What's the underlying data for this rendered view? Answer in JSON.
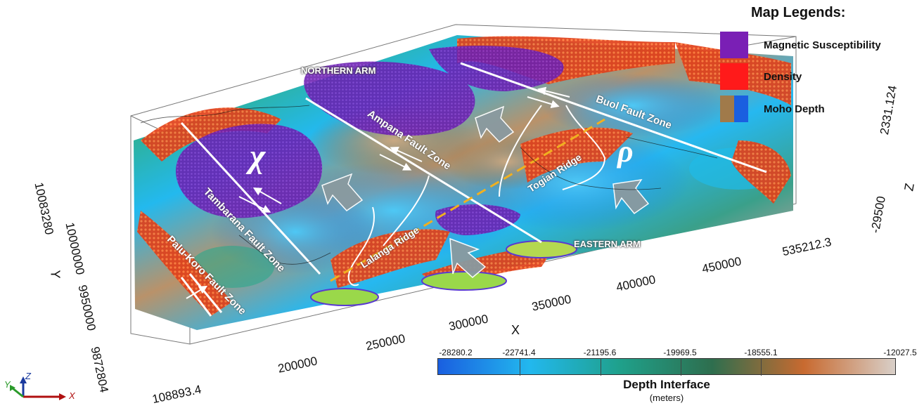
{
  "legend": {
    "title": "Map Legends:",
    "items": [
      {
        "label": "Magnetic Susceptibility",
        "color": "#7a1fb5"
      },
      {
        "label": "Density",
        "color": "#ff1a1a"
      },
      {
        "label": "Moho Depth",
        "colors": [
          "#a07a4a",
          "#1a5fe0"
        ]
      }
    ]
  },
  "map_labels": {
    "northern_arm": "NORTHERN ARM",
    "eastern_arm": "EASTERN ARM",
    "chi": "χ",
    "rho": "ρ",
    "ampana": "Ampana Fault Zone",
    "buol": "Buol Fault Zone",
    "togian": "Togian Ridge",
    "lalanga": "Lalanga Ridge",
    "tambarana": "Tambarana Fault Zone",
    "palu_koro": "Palu-Koro Fault Zone"
  },
  "axes": {
    "x": {
      "title": "X",
      "ticks": [
        "108893.4",
        "200000",
        "250000",
        "300000",
        "350000",
        "400000",
        "450000",
        "535212.3"
      ]
    },
    "y": {
      "title": "Y",
      "ticks": [
        "10083280",
        "10000000",
        "9950000",
        "9872804"
      ]
    },
    "z": {
      "title": "Z",
      "ticks": [
        "2331.124",
        "-29500"
      ]
    }
  },
  "colorbar": {
    "title": "Depth Interface",
    "unit": "(meters)",
    "labels": [
      "-28280.2",
      "-22741.4",
      "-21195.6",
      "-19969.5",
      "-18555.1",
      "-12027.5"
    ],
    "colors": [
      "#1a5fe0",
      "#22b8ee",
      "#1fa08a",
      "#2e6e4e",
      "#c86a30",
      "#d8cfc8"
    ]
  },
  "orientation": {
    "x": "X",
    "y": "Y",
    "z": "Z"
  }
}
